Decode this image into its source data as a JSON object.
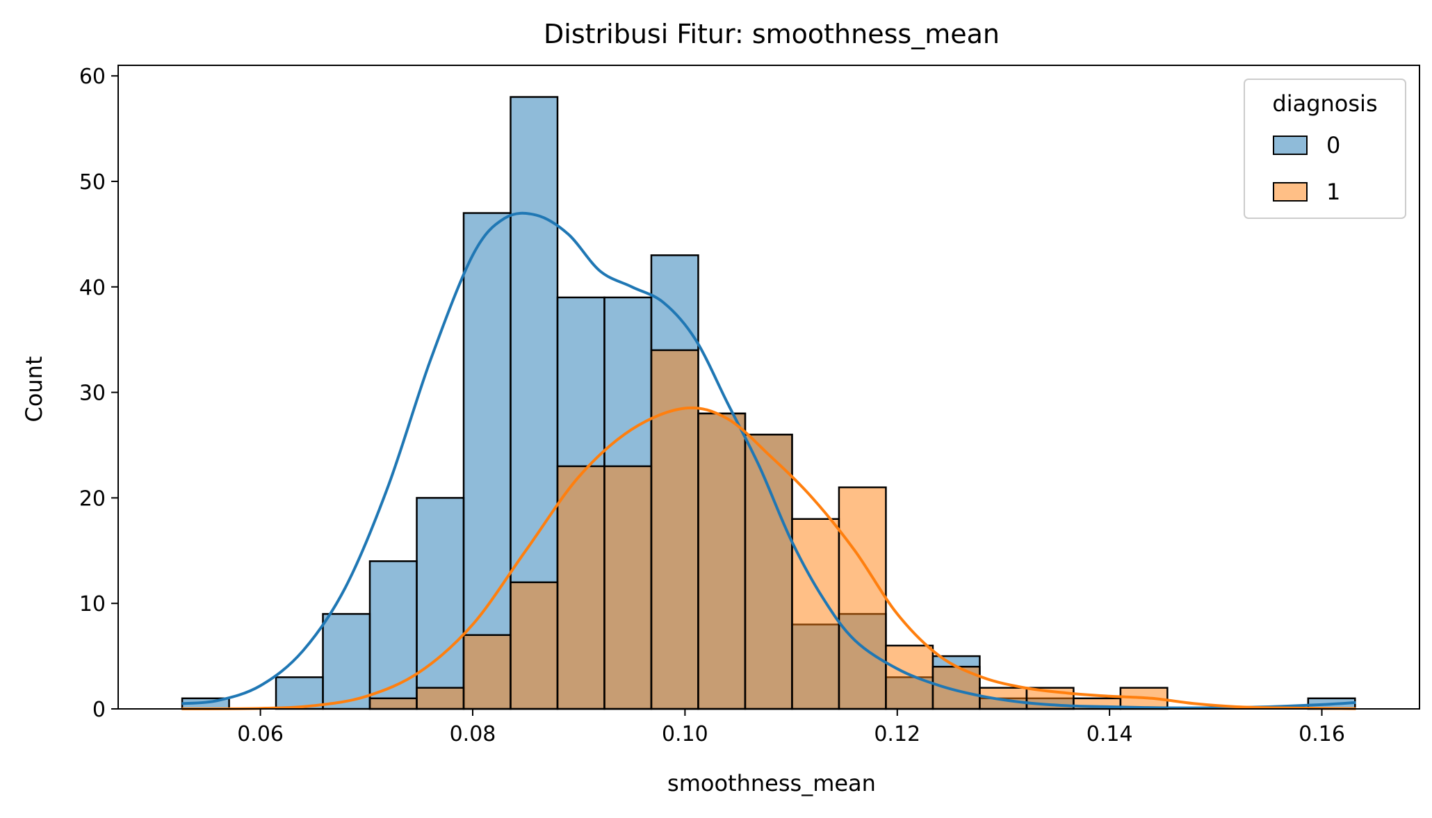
{
  "chart_data": {
    "type": "histogram",
    "title": "Distribusi Fitur: smoothness_mean",
    "xlabel": "smoothness_mean",
    "ylabel": "Count",
    "xlim": [
      0.0466,
      0.1692
    ],
    "ylim": [
      0,
      61
    ],
    "xticks": [
      "0.06",
      "0.08",
      "0.10",
      "0.12",
      "0.14",
      "0.16"
    ],
    "yticks": [
      "0",
      "10",
      "20",
      "30",
      "40",
      "50",
      "60"
    ],
    "legend": {
      "title": "diagnosis",
      "position": "top-right"
    },
    "grid": false,
    "bin_start": 0.05263,
    "bin_width": 0.00442,
    "series": [
      {
        "name": "0",
        "color": "#1f77b4",
        "fill": "#8fb8da",
        "counts": [
          1,
          0,
          3,
          9,
          14,
          20,
          47,
          58,
          39,
          39,
          43,
          28,
          26,
          8,
          9,
          3,
          5,
          1,
          1,
          0,
          0,
          0,
          0,
          0,
          1
        ],
        "kde": {
          "x": [
            0.0526,
            0.056,
            0.06,
            0.064,
            0.068,
            0.072,
            0.076,
            0.08,
            0.083,
            0.086,
            0.089,
            0.092,
            0.095,
            0.098,
            0.101,
            0.104,
            0.107,
            0.11,
            0.113,
            0.116,
            0.12,
            0.124,
            0.128,
            0.132,
            0.136,
            0.14,
            0.145,
            0.15,
            0.155,
            0.16,
            0.1632
          ],
          "y": [
            0.5,
            0.8,
            2.2,
            5.5,
            11.5,
            21,
            33,
            43,
            46.5,
            46.8,
            45,
            41.5,
            40,
            38.5,
            35,
            29,
            23,
            16,
            10.5,
            6.5,
            3.8,
            2.2,
            1.2,
            0.6,
            0.3,
            0.2,
            0.1,
            0.1,
            0.2,
            0.4,
            0.6
          ]
        }
      },
      {
        "name": "1",
        "color": "#ff7f0e",
        "fill": "#ffbf87",
        "counts": [
          0,
          0,
          0,
          0,
          1,
          2,
          7,
          12,
          23,
          23,
          34,
          28,
          26,
          18,
          21,
          6,
          4,
          2,
          2,
          1,
          2,
          0,
          0,
          0,
          0
        ],
        "kde": {
          "x": [
            0.0526,
            0.06,
            0.065,
            0.07,
            0.075,
            0.08,
            0.085,
            0.09,
            0.095,
            0.1,
            0.104,
            0.108,
            0.112,
            0.116,
            0.12,
            0.124,
            0.128,
            0.132,
            0.136,
            0.14,
            0.144,
            0.148,
            0.152,
            0.156,
            0.16,
            0.1632
          ],
          "y": [
            0,
            0.05,
            0.3,
            1.2,
            3.5,
            8,
            15,
            22,
            26.5,
            28.5,
            27.5,
            24,
            20,
            15,
            9,
            5,
            3,
            2,
            1.5,
            1.2,
            1,
            0.5,
            0.2,
            0.1,
            0.05,
            0.02
          ]
        }
      }
    ]
  }
}
